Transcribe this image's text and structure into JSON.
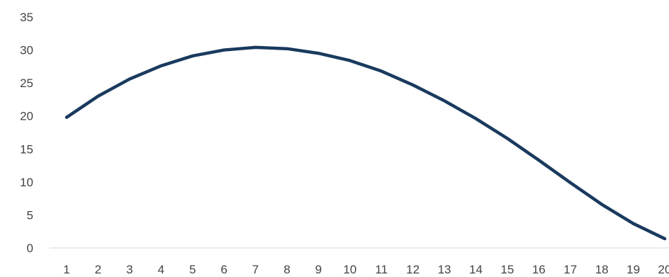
{
  "chart_data": {
    "type": "line",
    "x": [
      "1",
      "2",
      "3",
      "4",
      "5",
      "6",
      "7",
      "8",
      "9",
      "10",
      "11",
      "12",
      "13",
      "14",
      "15",
      "16",
      "17",
      "18",
      "19",
      "20"
    ],
    "series": [
      {
        "values": [
          19.8,
          23.0,
          25.6,
          27.6,
          29.1,
          30.0,
          30.4,
          30.2,
          29.5,
          28.4,
          26.8,
          24.7,
          22.3,
          19.6,
          16.6,
          13.3,
          9.9,
          6.6,
          3.7,
          1.4
        ],
        "color": "#1a3a5e"
      }
    ],
    "title": "",
    "xlabel": "",
    "ylabel": "",
    "ylim": [
      0,
      35
    ],
    "yticks": [
      "0",
      "5",
      "10",
      "15",
      "20",
      "25",
      "30",
      "35"
    ],
    "grid": false,
    "legend": "none",
    "axis_color": "#d9d9d9"
  }
}
